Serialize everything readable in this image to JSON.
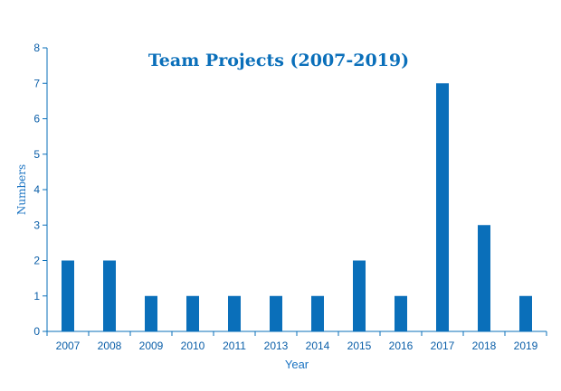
{
  "chart_data": {
    "type": "bar",
    "title": "Team Projects (2007-2019)",
    "xlabel": "Year",
    "ylabel": "Numbers",
    "categories": [
      "2007",
      "2008",
      "2009",
      "2010",
      "2011",
      "2013",
      "2014",
      "2015",
      "2016",
      "2017",
      "2018",
      "2019"
    ],
    "values": [
      2,
      2,
      1,
      1,
      1,
      1,
      1,
      2,
      1,
      7,
      3,
      1
    ],
    "ylim": [
      0,
      8
    ],
    "yticks": [
      "0",
      "1",
      "2",
      "3",
      "4",
      "5",
      "6",
      "7",
      "8"
    ],
    "grid": false,
    "legend": "none",
    "colors": {
      "bar": "#0a6fba",
      "axis": "#0a6fba",
      "text": "#1a73c2"
    }
  }
}
